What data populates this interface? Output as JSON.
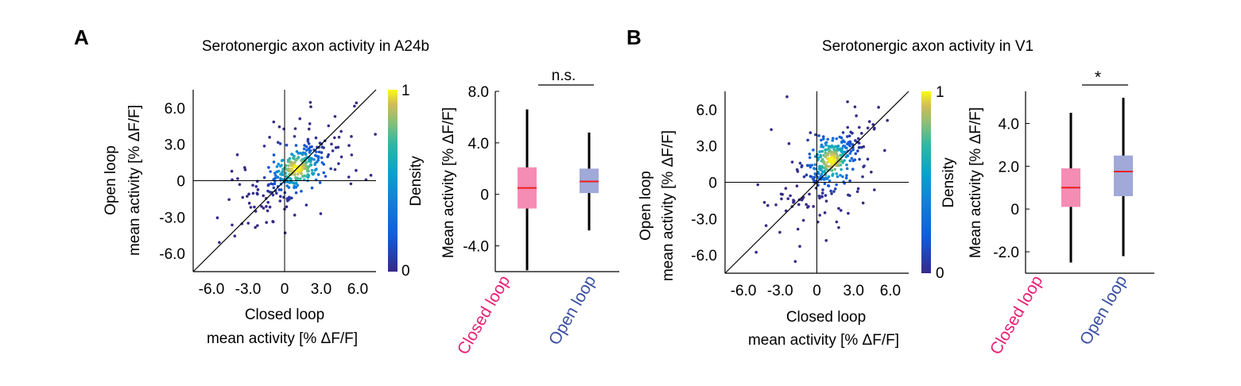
{
  "panels": [
    {
      "letter": "A",
      "title": "Serotonergic axon activity in A24b",
      "scatter": {
        "xlabel_line1": "Closed loop",
        "xlabel_line2": "mean activity [% ΔF/F]",
        "ylabel_line1": "Open loop",
        "ylabel_line2": "mean activity [% ΔF/F]",
        "xlim": [
          -7.5,
          7.5
        ],
        "ylim": [
          -7.5,
          7.5
        ],
        "ticks": [
          -6.0,
          -3.0,
          0,
          3.0,
          6.0
        ],
        "tick_labels": [
          "-6.0",
          "-3.0",
          "0",
          "3.0",
          "6.0"
        ],
        "core_center": [
          1.0,
          1.0
        ],
        "core_spread": [
          1.1,
          0.9
        ],
        "outlier_spread": [
          2.8,
          2.4
        ]
      },
      "colorbar": {
        "label": "Density",
        "max_label": "1",
        "min_label": "0"
      },
      "boxplot": {
        "ylabel": "Mean activity [% ΔF/F]",
        "ylim": [
          -6.0,
          8.0
        ],
        "ticks": [
          -4.0,
          0,
          4.0,
          8.0
        ],
        "tick_labels": [
          "-4.0",
          "0",
          "4.0",
          "8.0"
        ],
        "groups": [
          {
            "label": "Closed loop",
            "color": "#e91e74",
            "fill": "#f48cb4",
            "whisker_low": -5.9,
            "q1": -1.1,
            "median": 0.5,
            "q3": 2.1,
            "whisker_high": 6.6
          },
          {
            "label": "Open loop",
            "color": "#3a4fa0",
            "fill": "#a0a9d8",
            "whisker_low": -2.8,
            "q1": 0.1,
            "median": 1.0,
            "q3": 2.0,
            "whisker_high": 4.8
          }
        ],
        "significance": "n.s."
      }
    },
    {
      "letter": "B",
      "title": "Serotonergic axon activity in V1",
      "scatter": {
        "xlabel_line1": "Closed loop",
        "xlabel_line2": "mean activity [% ΔF/F]",
        "ylabel_line1": "Open loop",
        "ylabel_line2": "mean activity [% ΔF/F]",
        "xlim": [
          -7.5,
          7.5
        ],
        "ylim": [
          -7.5,
          7.5
        ],
        "ticks": [
          -6.0,
          -3.0,
          0,
          3.0,
          6.0
        ],
        "tick_labels": [
          "-6.0",
          "-3.0",
          "0",
          "3.0",
          "6.0"
        ],
        "core_center": [
          1.2,
          1.8
        ],
        "core_spread": [
          0.9,
          1.0
        ],
        "outlier_spread": [
          2.6,
          2.8
        ]
      },
      "colorbar": {
        "label": "Density",
        "max_label": "1",
        "min_label": "0"
      },
      "boxplot": {
        "ylabel": "Mean activity [% ΔF/F]",
        "ylim": [
          -3.0,
          5.5
        ],
        "ticks": [
          -2.0,
          0,
          2.0,
          4.0
        ],
        "tick_labels": [
          "-2.0",
          "0",
          "2.0",
          "4.0"
        ],
        "groups": [
          {
            "label": "Closed loop",
            "color": "#e91e74",
            "fill": "#f48cb4",
            "whisker_low": -2.5,
            "q1": 0.1,
            "median": 1.0,
            "q3": 1.9,
            "whisker_high": 4.5
          },
          {
            "label": "Open loop",
            "color": "#3a4fa0",
            "fill": "#a0a9d8",
            "whisker_low": -2.2,
            "q1": 0.6,
            "median": 1.75,
            "q3": 2.5,
            "whisker_high": 5.2
          }
        ],
        "significance": "*"
      }
    }
  ],
  "chart_data": [
    {
      "type": "scatter",
      "title": "Serotonergic axon activity in A24b",
      "xlabel": "Closed loop mean activity [% ΔF/F]",
      "ylabel": "Open loop mean activity [% ΔF/F]",
      "xlim": [
        -7.5,
        7.5
      ],
      "ylim": [
        -7.5,
        7.5
      ],
      "ticks": [
        "-6.0",
        "-3.0",
        "0",
        "3.0",
        "6.0"
      ],
      "colorbar": "Density 0–1",
      "identity_line": true
    },
    {
      "type": "box",
      "ylabel": "Mean activity [% ΔF/F]",
      "categories": [
        "Closed loop",
        "Open loop"
      ],
      "significance": "n.s."
    },
    {
      "type": "scatter",
      "title": "Serotonergic axon activity in V1",
      "xlabel": "Closed loop mean activity [% ΔF/F]",
      "ylabel": "Open loop mean activity [% ΔF/F]",
      "xlim": [
        -7.5,
        7.5
      ],
      "ylim": [
        -7.5,
        7.5
      ],
      "ticks": [
        "-6.0",
        "-3.0",
        "0",
        "3.0",
        "6.0"
      ],
      "colorbar": "Density 0–1",
      "identity_line": true
    },
    {
      "type": "box",
      "ylabel": "Mean activity [% ΔF/F]",
      "categories": [
        "Closed loop",
        "Open loop"
      ],
      "significance": "*"
    }
  ]
}
